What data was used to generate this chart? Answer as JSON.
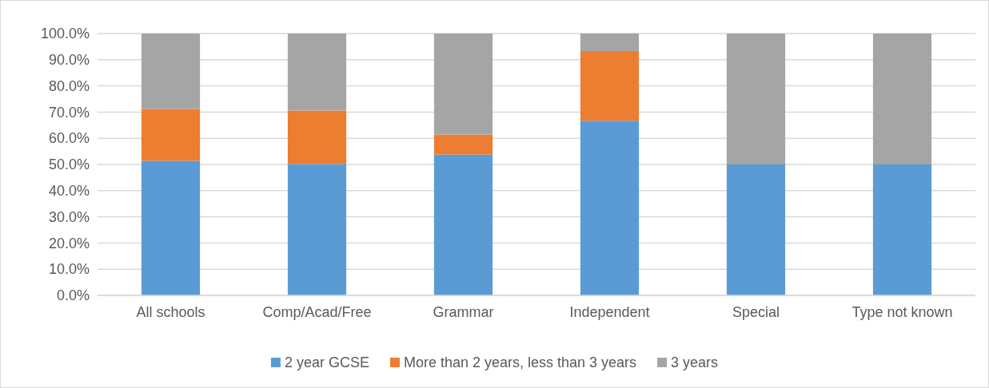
{
  "chart_data": {
    "type": "bar",
    "stacked": true,
    "categories": [
      "All schools",
      "Comp/Acad/Free",
      "Grammar",
      "Independent",
      "Special",
      "Type not known"
    ],
    "series": [
      {
        "name": "2 year GCSE",
        "color": "#5b9bd5",
        "values": [
          51.4,
          50.2,
          53.8,
          66.7,
          50,
          50
        ]
      },
      {
        "name": "More than 2 years, less than 3 years",
        "color": "#ed7d31",
        "values": [
          19.8,
          20.4,
          7.6,
          26.6,
          0,
          0
        ]
      },
      {
        "name": "3 years",
        "color": "#a5a5a5",
        "values": [
          28.8,
          29.4,
          38.6,
          6.7,
          50,
          50
        ]
      }
    ],
    "ylim": [
      0,
      100
    ],
    "yticks": [
      {
        "value": 0,
        "label": "0.0%"
      },
      {
        "value": 10,
        "label": "10.0%"
      },
      {
        "value": 20,
        "label": "20.0%"
      },
      {
        "value": 30,
        "label": "30.0%"
      },
      {
        "value": 40,
        "label": "40.0%"
      },
      {
        "value": 50,
        "label": "50.0%"
      },
      {
        "value": 60,
        "label": "60.0%"
      },
      {
        "value": 70,
        "label": "70.0%"
      },
      {
        "value": 80,
        "label": "80.0%"
      },
      {
        "value": 90,
        "label": "90.0%"
      },
      {
        "value": 100,
        "label": "100.0%"
      }
    ],
    "grid": "y",
    "legend": "bottom"
  }
}
